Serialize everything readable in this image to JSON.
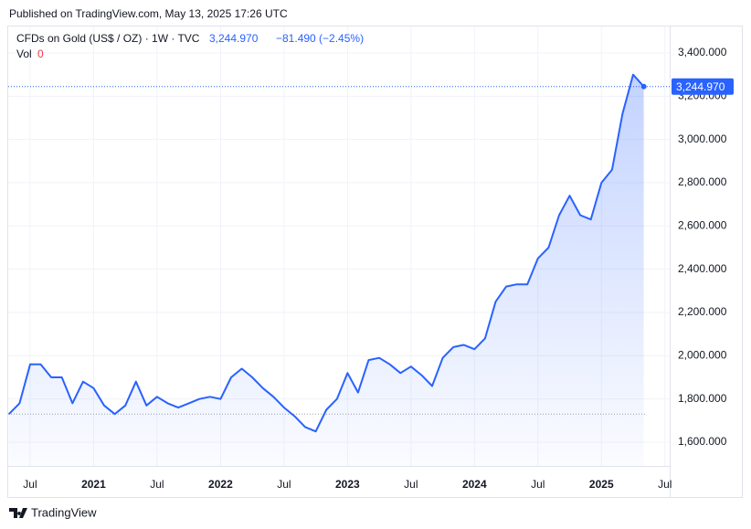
{
  "published": "Published on TradingView.com, May 13, 2025 17:26 UTC",
  "chart_data": {
    "type": "area",
    "title": "CFDs on Gold (US$ / OZ) · 1W · TVC",
    "last_label": "3,244.970",
    "change": "−81.490 (−2.45%)",
    "volume_label": "Vol",
    "volume_value": "0",
    "color": "#2962ff",
    "reference_line": 1730,
    "categories": [
      null,
      null,
      "Jul",
      null,
      null,
      null,
      null,
      null,
      "2021",
      null,
      null,
      null,
      null,
      null,
      "Jul",
      null,
      null,
      null,
      null,
      null,
      "2022",
      null,
      null,
      null,
      null,
      null,
      "Jul",
      null,
      null,
      null,
      null,
      null,
      "2023",
      null,
      null,
      null,
      null,
      null,
      "Jul",
      null,
      null,
      null,
      null,
      null,
      "2024",
      null,
      null,
      null,
      null,
      null,
      "Jul",
      null,
      null,
      null,
      null,
      null,
      "2025",
      null,
      null,
      null,
      null,
      null,
      "Jul"
    ],
    "values": [
      1730,
      1780,
      1960,
      1960,
      1900,
      1900,
      1780,
      1880,
      1850,
      1770,
      1730,
      1770,
      1880,
      1770,
      1810,
      1780,
      1760,
      1780,
      1800,
      1810,
      1800,
      1900,
      1940,
      1900,
      1850,
      1810,
      1760,
      1720,
      1670,
      1650,
      1750,
      1800,
      1920,
      1830,
      1980,
      1990,
      1960,
      1920,
      1950,
      1910,
      1860,
      1990,
      2040,
      2050,
      2030,
      2080,
      2250,
      2320,
      2330,
      2330,
      2450,
      2500,
      2650,
      2740,
      2650,
      2630,
      2800,
      2860,
      3120,
      3300,
      3244.97,
      null,
      null
    ],
    "ylim": [
      1500,
      3500
    ],
    "yticks": [
      {
        "value": 1600,
        "label": "1,600.000"
      },
      {
        "value": 1800,
        "label": "1,800.000"
      },
      {
        "value": 2000,
        "label": "2,000.000"
      },
      {
        "value": 2200,
        "label": "2,200.000"
      },
      {
        "value": 2400,
        "label": "2,400.000"
      },
      {
        "value": 2600,
        "label": "2,600.000"
      },
      {
        "value": 2800,
        "label": "2,800.000"
      },
      {
        "value": 3000,
        "label": "3,000.000"
      },
      {
        "value": 3200,
        "label": "3,200.000"
      },
      {
        "value": 3400,
        "label": "3,400.000"
      }
    ],
    "grid": true
  },
  "footer": {
    "brand": "TradingView"
  }
}
